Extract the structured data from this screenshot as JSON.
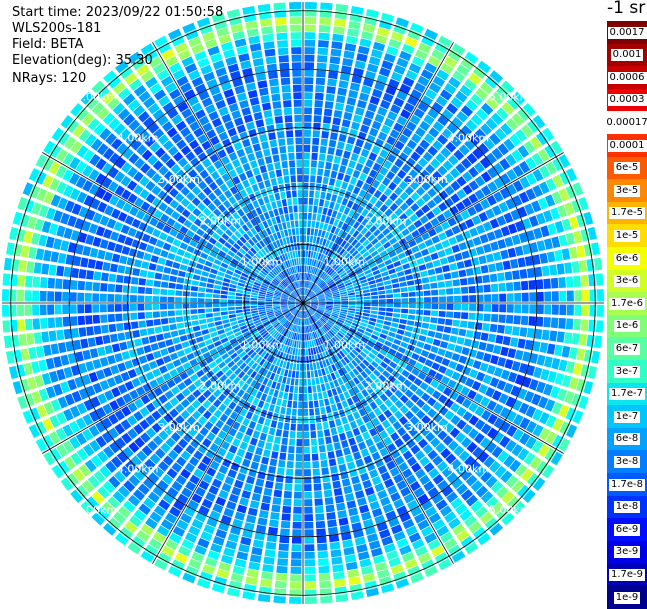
{
  "header": {
    "start_time": "Start time: 2023/09/22 01:50:58",
    "instrument": "WLS200s-181",
    "field": "Field: BETA",
    "elevation": "Elevation(deg): 35.30",
    "nrays": "NRays: 120"
  },
  "colorbar": {
    "title": "-1 sr",
    "labels": [
      "0.0017",
      "0.001",
      "0.0006",
      "0.0003",
      "0.00017",
      "0.0001",
      "6e-5",
      "3e-5",
      "1.7e-5",
      "1e-5",
      "6e-6",
      "3e-6",
      "1.7e-6",
      "1e-6",
      "6e-7",
      "3e-7",
      "1.7e-7",
      "1e-7",
      "6e-8",
      "3e-8",
      "1.7e-8",
      "1e-8",
      "6e-9",
      "3e-9",
      "1.7e-9",
      "1e-9"
    ],
    "colors": [
      "#7f0000",
      "#a30000",
      "#c80000",
      "#ee0000",
      "#ffffff",
      "#ff3000",
      "#ff5a00",
      "#ff8800",
      "#ffb200",
      "#ffdd00",
      "#f4ff00",
      "#cfff27",
      "#a8ff4f",
      "#7fff78",
      "#57ffa0",
      "#30ffc8",
      "#0ae6f0",
      "#00c6ff",
      "#00a2ff",
      "#007eff",
      "#005aff",
      "#0032ff",
      "#000eff",
      "#0000e6",
      "#0000b8",
      "#00008f"
    ]
  },
  "chart_data": {
    "type": "heatmap",
    "projection": "polar PPI",
    "nrays": 120,
    "range_rings_km": [
      1.0,
      2.0,
      3.0,
      4.0,
      5.0
    ],
    "ring_labels": [
      "1.00km",
      "2.00km",
      "3.00km",
      "4.00km",
      "5.00km"
    ],
    "max_range_km": 5.15,
    "spoke_angles_deg": [
      0,
      30,
      60,
      90,
      120,
      150,
      180,
      210,
      240,
      270,
      300,
      330
    ],
    "field": "BETA",
    "color_scale": "log",
    "value_range": [
      1e-09,
      0.0017
    ],
    "units": "-1 sr",
    "grid": true,
    "radial_profile": [
      {
        "range_km": 0.5,
        "value": 3e-08
      },
      {
        "range_km": 1.0,
        "value": 4e-08
      },
      {
        "range_km": 2.0,
        "value": 5e-08
      },
      {
        "range_km": 3.0,
        "value": 4e-08
      },
      {
        "range_km": 4.0,
        "value": 3e-08
      },
      {
        "range_km": 4.55,
        "value": 1e-07
      },
      {
        "range_km": 4.8,
        "value": 3e-06
      },
      {
        "range_km": 5.0,
        "value": 2e-07
      }
    ]
  }
}
